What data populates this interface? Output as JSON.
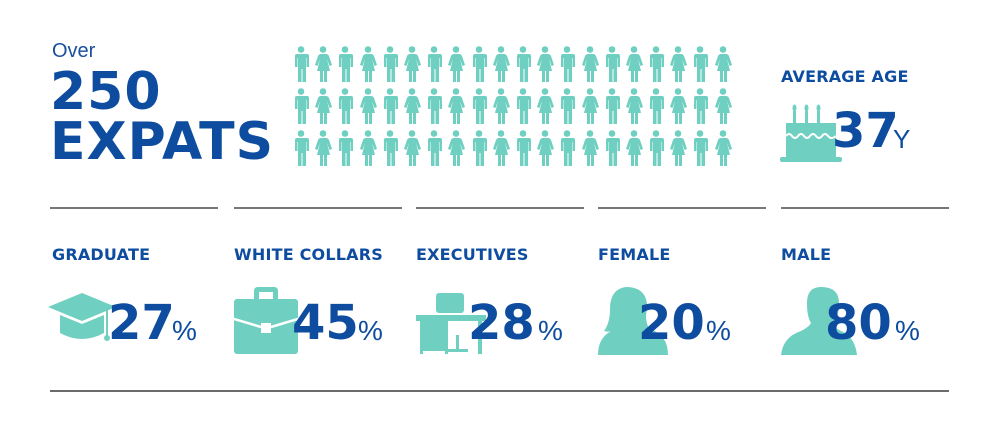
{
  "headline": {
    "prefix": "Over",
    "number": "250",
    "word": "EXPATS"
  },
  "people_grid": {
    "rows": 3,
    "per_row": 20,
    "pattern": [
      "male",
      "female"
    ],
    "color": "#6fcfc0"
  },
  "average_age": {
    "label": "AVERAGE AGE",
    "value": "37",
    "unit": "Y",
    "icon": "birthday-cake-icon"
  },
  "stats": [
    {
      "label": "GRADUATE",
      "value": "27",
      "unit": "%",
      "icon": "graduation-cap-icon"
    },
    {
      "label": "WHITE COLLARS",
      "value": "45",
      "unit": "%",
      "icon": "briefcase-icon"
    },
    {
      "label": "EXECUTIVES",
      "value": "28",
      "unit": "%",
      "icon": "desk-icon"
    },
    {
      "label": "FEMALE",
      "value": "20",
      "unit": "%",
      "icon": "female-silhouette-icon"
    },
    {
      "label": "MALE",
      "value": "80",
      "unit": "%",
      "icon": "male-silhouette-icon"
    }
  ],
  "colors": {
    "primary_text": "#0d4c9e",
    "icon_teal": "#6fcfc0",
    "divider": "#777777"
  }
}
